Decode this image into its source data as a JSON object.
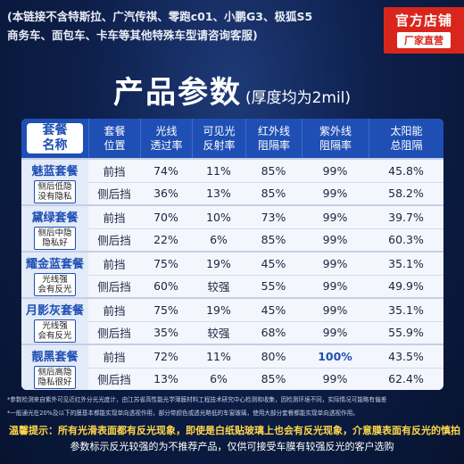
{
  "notice": {
    "line1": "(本链接不含特斯拉、广汽传祺、零跑c01、小鹏G3、极狐S5",
    "line2": "商务车、面包车、卡车等其他特殊车型请咨询客服)"
  },
  "store_badge": {
    "title": "官方店铺",
    "subtitle": "厂家直营"
  },
  "title": {
    "main": "产品参数",
    "sub": "(厚度均为2mil)"
  },
  "table": {
    "headers": [
      {
        "l1": "套餐",
        "l2": "名称"
      },
      {
        "l1": "套餐",
        "l2": "位置"
      },
      {
        "l1": "光线",
        "l2": "透过率"
      },
      {
        "l1": "可见光",
        "l2": "反射率"
      },
      {
        "l1": "红外线",
        "l2": "阻隔率"
      },
      {
        "l1": "紫外线",
        "l2": "阻隔率"
      },
      {
        "l1": "太阳能",
        "l2": "总阻隔"
      }
    ],
    "groups": [
      {
        "name": "魅蓝套餐",
        "desc1": "侧后低隐",
        "desc2": "没有隐私",
        "rows": [
          [
            "前挡",
            "74%",
            "11%",
            "85%",
            "99%",
            "45.8%"
          ],
          [
            "侧后挡",
            "36%",
            "13%",
            "85%",
            "99%",
            "58.2%"
          ]
        ]
      },
      {
        "name": "黛绿套餐",
        "desc1": "侧后中隐",
        "desc2": "隐私好",
        "rows": [
          [
            "前挡",
            "70%",
            "10%",
            "73%",
            "99%",
            "39.7%"
          ],
          [
            "侧后挡",
            "22%",
            "6%",
            "85%",
            "99%",
            "60.3%"
          ]
        ]
      },
      {
        "name": "耀金蓝套餐",
        "desc1": "光线强",
        "desc2": "会有反光",
        "rows": [
          [
            "前挡",
            "75%",
            "19%",
            "45%",
            "99%",
            "35.1%"
          ],
          [
            "侧后挡",
            "60%",
            "较强",
            "55%",
            "99%",
            "49.9%"
          ]
        ]
      },
      {
        "name": "月影灰套餐",
        "desc1": "光线强",
        "desc2": "会有反光",
        "rows": [
          [
            "前挡",
            "75%",
            "19%",
            "45%",
            "99%",
            "35.1%"
          ],
          [
            "侧后挡",
            "35%",
            "较强",
            "68%",
            "99%",
            "55.9%"
          ]
        ]
      },
      {
        "name": "靓黑套餐",
        "desc1": "侧后高隐",
        "desc2": "隐私很好",
        "rows": [
          [
            "前挡",
            "72%",
            "11%",
            "80%",
            "100%",
            "43.5%"
          ],
          [
            "侧后挡",
            "13%",
            "6%",
            "85%",
            "99%",
            "62.4%"
          ]
        ]
      }
    ]
  },
  "footnotes": {
    "line1": "*参数检测来自紫外可见近红外分光光度计，由江苏省高性能光学薄膜材料工程技术研究中心检测和收集，因检测环境不同，实际情况可能略有偏差",
    "line2": "*一般通光在20%及以下的膜基本都能实现单向透视作用，部分带颜色或透光略低的车窗玻璃，使用大部分套餐都能实现单向透视作用。"
  },
  "tip": "温馨提示：所有光滑表面都有反光现象，即使是白纸贴玻璃上也会有反光现象，介意膜表面有反光的慎拍",
  "tip2": "参数标示反光较强的为不推荐产品，仅供可接受车膜有较强反光的客户选购"
}
